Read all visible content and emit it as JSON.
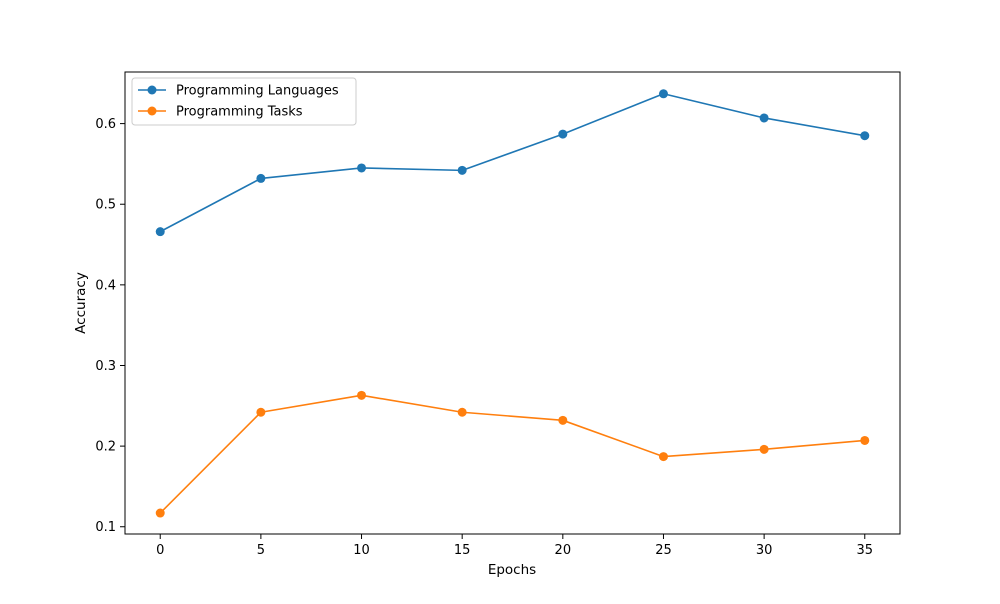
{
  "chart_data": {
    "type": "line",
    "title": "",
    "xlabel": "Epochs",
    "ylabel": "Accuracy",
    "x": [
      0,
      5,
      10,
      15,
      20,
      25,
      30,
      35
    ],
    "xlim": [
      -1.75,
      36.75
    ],
    "ylim": [
      0.091,
      0.664
    ],
    "xticks": [
      0,
      5,
      10,
      15,
      20,
      25,
      30,
      35
    ],
    "yticks": [
      0.1,
      0.2,
      0.3,
      0.4,
      0.5,
      0.6
    ],
    "grid": false,
    "legend_position": "top-left",
    "series": [
      {
        "name": "Programming Languages",
        "color": "#1f77b4",
        "marker": "circle",
        "values": [
          0.466,
          0.532,
          0.545,
          0.542,
          0.587,
          0.637,
          0.607,
          0.585
        ]
      },
      {
        "name": "Programming Tasks",
        "color": "#ff7f0e",
        "marker": "circle",
        "values": [
          0.117,
          0.242,
          0.263,
          0.242,
          0.232,
          0.187,
          0.196,
          0.207
        ]
      }
    ]
  }
}
